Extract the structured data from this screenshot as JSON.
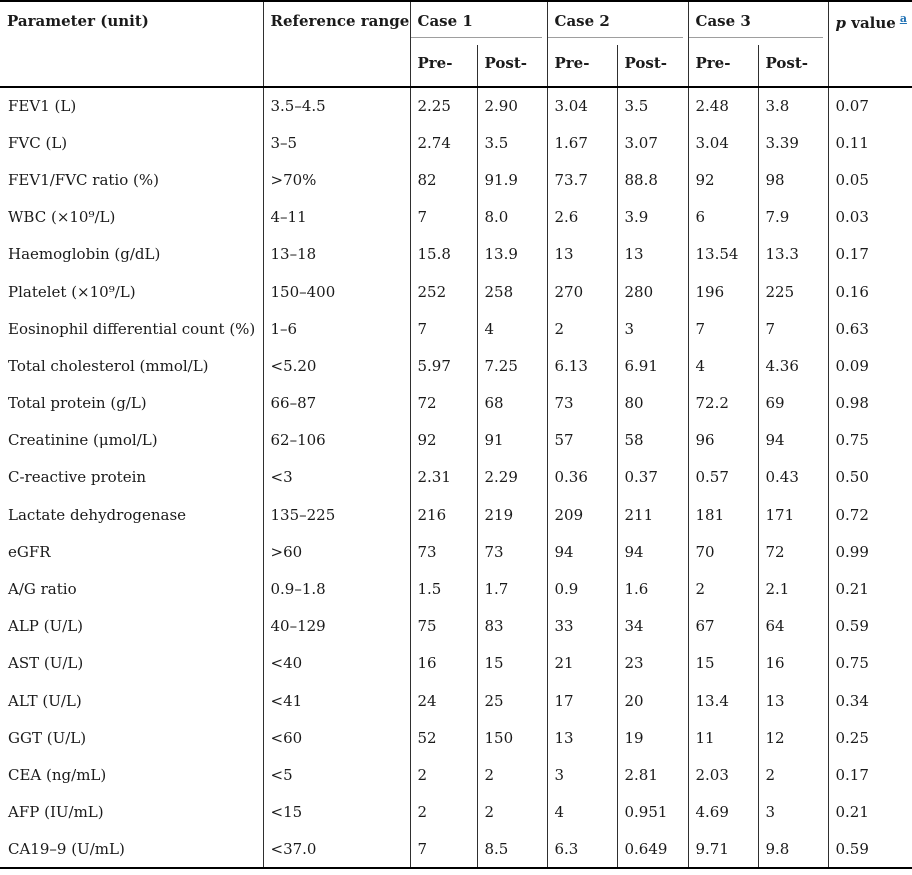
{
  "table": {
    "header": {
      "parameter": "Parameter (unit)",
      "reference_range": "Reference range",
      "case_groups": [
        {
          "label": "Case 1",
          "sub": [
            "Pre-",
            "Post-"
          ]
        },
        {
          "label": "Case 2",
          "sub": [
            "Pre-",
            "Post-"
          ]
        },
        {
          "label": "Case 3",
          "sub": [
            "Pre-",
            "Post-"
          ]
        }
      ],
      "p_value": {
        "italic": "p",
        "text": " value",
        "superscript_link": "a"
      }
    },
    "rows": [
      [
        "FEV1 (L)",
        "3.5–4.5",
        "2.25",
        "2.90",
        "3.04",
        "3.5",
        "2.48",
        "3.8",
        "0.07"
      ],
      [
        "FVC (L)",
        "3–5",
        "2.74",
        "3.5",
        "1.67",
        "3.07",
        "3.04",
        "3.39",
        "0.11"
      ],
      [
        "FEV1/FVC ratio (%)",
        ">70%",
        "82",
        "91.9",
        "73.7",
        "88.8",
        "92",
        "98",
        "0.05"
      ],
      [
        "WBC (×10⁹/L)",
        "4–11",
        "7",
        "8.0",
        "2.6",
        "3.9",
        "6",
        "7.9",
        "0.03"
      ],
      [
        "Haemoglobin (g/dL)",
        "13–18",
        "15.8",
        "13.9",
        "13",
        "13",
        "13.54",
        "13.3",
        "0.17"
      ],
      [
        "Platelet (×10⁹/L)",
        "150–400",
        "252",
        "258",
        "270",
        "280",
        "196",
        "225",
        "0.16"
      ],
      [
        "Eosinophil differential count (%)",
        "1–6",
        "7",
        "4",
        "2",
        "3",
        "7",
        "7",
        "0.63"
      ],
      [
        "Total cholesterol (mmol/L)",
        "<5.20",
        "5.97",
        "7.25",
        "6.13",
        "6.91",
        "4",
        "4.36",
        "0.09"
      ],
      [
        "Total protein (g/L)",
        "66–87",
        "72",
        "68",
        "73",
        "80",
        "72.2",
        "69",
        "0.98"
      ],
      [
        "Creatinine (μmol/L)",
        "62–106",
        "92",
        "91",
        "57",
        "58",
        "96",
        "94",
        "0.75"
      ],
      [
        "C-reactive protein",
        "<3",
        "2.31",
        "2.29",
        "0.36",
        "0.37",
        "0.57",
        "0.43",
        "0.50"
      ],
      [
        "Lactate dehydrogenase",
        "135–225",
        "216",
        "219",
        "209",
        "211",
        "181",
        "171",
        "0.72"
      ],
      [
        "eGFR",
        ">60",
        "73",
        "73",
        "94",
        "94",
        "70",
        "72",
        "0.99"
      ],
      [
        "A/G ratio",
        "0.9–1.8",
        "1.5",
        "1.7",
        "0.9",
        "1.6",
        "2",
        "2.1",
        "0.21"
      ],
      [
        "ALP (U/L)",
        "40–129",
        "75",
        "83",
        "33",
        "34",
        "67",
        "64",
        "0.59"
      ],
      [
        "AST (U/L)",
        "<40",
        "16",
        "15",
        "21",
        "23",
        "15",
        "16",
        "0.75"
      ],
      [
        "ALT (U/L)",
        "<41",
        "24",
        "25",
        "17",
        "20",
        "13.4",
        "13",
        "0.34"
      ],
      [
        "GGT (U/L)",
        "<60",
        "52",
        "150",
        "13",
        "19",
        "11",
        "12",
        "0.25"
      ],
      [
        "CEA (ng/mL)",
        "<5",
        "2",
        "2",
        "3",
        "2.81",
        "2.03",
        "2",
        "0.17"
      ],
      [
        "AFP (IU/mL)",
        "<15",
        "2",
        "2",
        "4",
        "0.951",
        "4.69",
        "3",
        "0.21"
      ],
      [
        "CA19–9 (U/mL)",
        "<37.0",
        "7",
        "8.5",
        "6.3",
        "0.649",
        "9.71",
        "9.8",
        "0.59"
      ]
    ]
  },
  "colors": {
    "text": "#1a1a1a",
    "background": "#ffffff",
    "thick_rule": "#000000",
    "column_rule": "#2f2f2f",
    "group_underline": "#9e9e9e",
    "footnote_link_blue": "#2273b5"
  }
}
